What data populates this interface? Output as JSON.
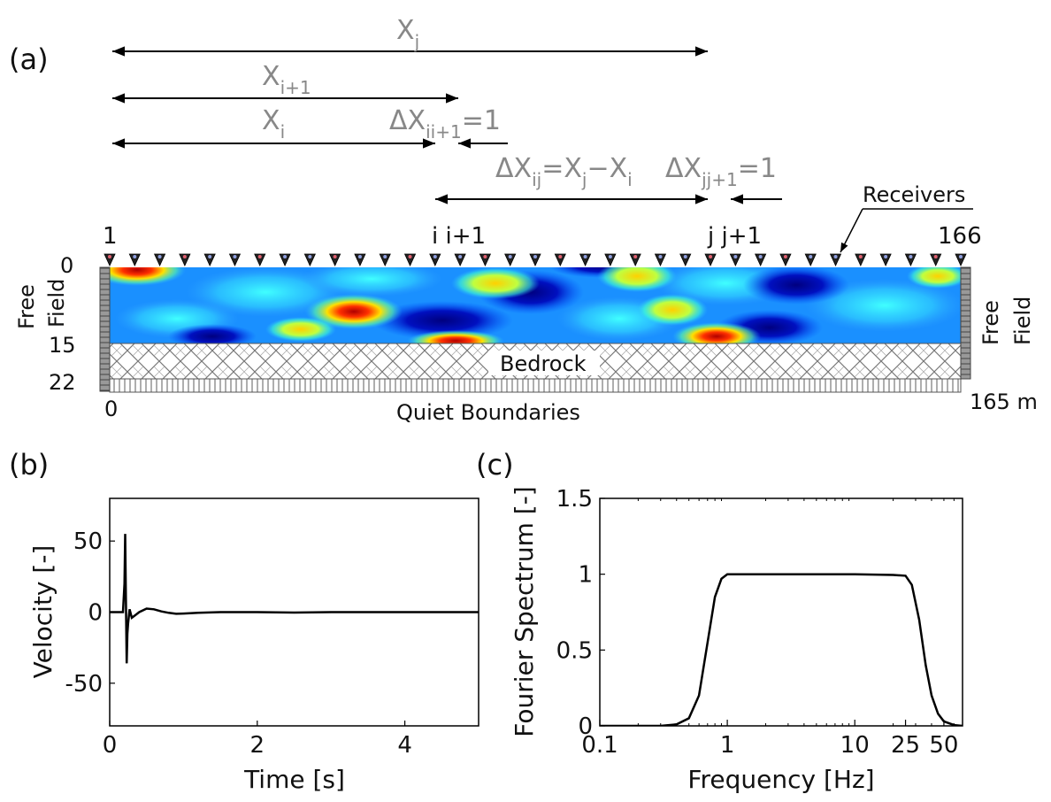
{
  "panel_a": {
    "label": "(a)",
    "dims": {
      "xj": {
        "main": "X",
        "sub": "j"
      },
      "xi1": {
        "main": "X",
        "sub": "i+1"
      },
      "xi": {
        "main": "X",
        "sub": "i"
      },
      "dx_ii1": {
        "p1": "ΔX",
        "s1": "ii+1",
        "p2": "=1"
      },
      "dx_ij": {
        "p1": "ΔX",
        "s1": "ij",
        "p2": "=X",
        "s2": "j",
        "p3": "−X",
        "s3": "i"
      },
      "dx_jj1": {
        "p1": "ΔX",
        "s1": "jj+1",
        "p2": "=1"
      }
    },
    "receivers_label": "Receivers",
    "receiver_numbers": {
      "first": "1",
      "ii1": "i i+1",
      "jj1": "j j+1",
      "last": "166"
    },
    "depth_ticks": [
      "0",
      "15",
      "22"
    ],
    "free_field_left": [
      "Free",
      "Field"
    ],
    "free_field_right": [
      "Free",
      "Field"
    ],
    "bedrock_label": "Bedrock",
    "quiet_boundaries": "Quiet Boundaries",
    "x_start": "0",
    "x_end": "165 m"
  },
  "panel_b": {
    "label": "(b)",
    "chart_data": {
      "type": "line",
      "xlabel": "Time [s]",
      "ylabel": "Velocity [-]",
      "xlim": [
        0,
        5
      ],
      "ylim": [
        -80,
        80
      ],
      "xticks": [
        "0",
        "2",
        "4"
      ],
      "yticks": [
        "50",
        "0",
        "-50"
      ],
      "series": [
        {
          "x": [
            0,
            0.18,
            0.2,
            0.21,
            0.22,
            0.23,
            0.24,
            0.25,
            0.27,
            0.3,
            0.35,
            0.4,
            0.5,
            0.6,
            0.7,
            0.8,
            0.9,
            1.0,
            1.2,
            1.5,
            2.0,
            2.5,
            3.0,
            4.0,
            5.0
          ],
          "y": [
            0,
            0,
            20,
            55,
            10,
            -36,
            -15,
            -8,
            2,
            -4,
            -2,
            0,
            2.5,
            2,
            0.5,
            -0.5,
            -1.2,
            -1,
            -0.5,
            0,
            0,
            -0.3,
            0,
            0,
            0
          ]
        }
      ]
    }
  },
  "panel_c": {
    "label": "(c)",
    "chart_data": {
      "type": "line",
      "xlabel": "Frequency [Hz]",
      "ylabel": "Fourier Spectrum [-]",
      "xscale": "log",
      "xlim": [
        0.1,
        70
      ],
      "ylim": [
        0,
        1.5
      ],
      "xticks": [
        "0.1",
        "1",
        "10",
        "25",
        "50"
      ],
      "yticks": [
        "0",
        "0.5",
        "1",
        "1.5"
      ],
      "series": [
        {
          "x": [
            0.1,
            0.3,
            0.4,
            0.5,
            0.6,
            0.7,
            0.8,
            0.9,
            1.0,
            1.2,
            1.5,
            2,
            5,
            10,
            20,
            25,
            28,
            32,
            36,
            40,
            45,
            50,
            60,
            70
          ],
          "y": [
            0,
            0,
            0.01,
            0.05,
            0.2,
            0.55,
            0.85,
            0.97,
            1.0,
            1.0,
            1.0,
            1.0,
            1.0,
            1.0,
            0.995,
            0.99,
            0.93,
            0.7,
            0.4,
            0.2,
            0.08,
            0.03,
            0.005,
            0
          ]
        }
      ]
    }
  }
}
